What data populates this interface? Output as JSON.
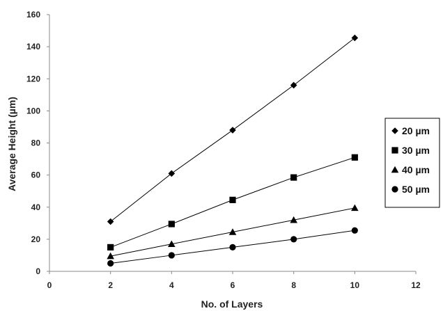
{
  "chart_data": {
    "type": "line",
    "title": "",
    "xlabel": "No. of Layers",
    "ylabel": "Average Height (µm)",
    "xlim": [
      0,
      12
    ],
    "ylim": [
      0,
      160
    ],
    "x_ticks": [
      "0",
      "2",
      "4",
      "6",
      "8",
      "10",
      "12"
    ],
    "y_ticks": [
      "0",
      "20",
      "40",
      "60",
      "80",
      "100",
      "120",
      "140",
      "160"
    ],
    "grid": false,
    "legend_position": "right",
    "x": [
      2,
      4,
      6,
      8,
      10
    ],
    "series": [
      {
        "name": "20 µm",
        "marker": "diamond",
        "values": [
          31,
          61,
          88,
          116,
          145.5
        ]
      },
      {
        "name": "30 µm",
        "marker": "square",
        "values": [
          15,
          29.5,
          44.5,
          58.5,
          71
        ]
      },
      {
        "name": "40 µm",
        "marker": "triangle",
        "values": [
          9.5,
          17,
          24.5,
          32,
          39.5
        ]
      },
      {
        "name": "50 µm",
        "marker": "circle",
        "values": [
          5,
          10,
          15,
          20,
          25.5
        ]
      }
    ],
    "colors": {
      "line": "#000000",
      "marker": "#000000"
    }
  }
}
